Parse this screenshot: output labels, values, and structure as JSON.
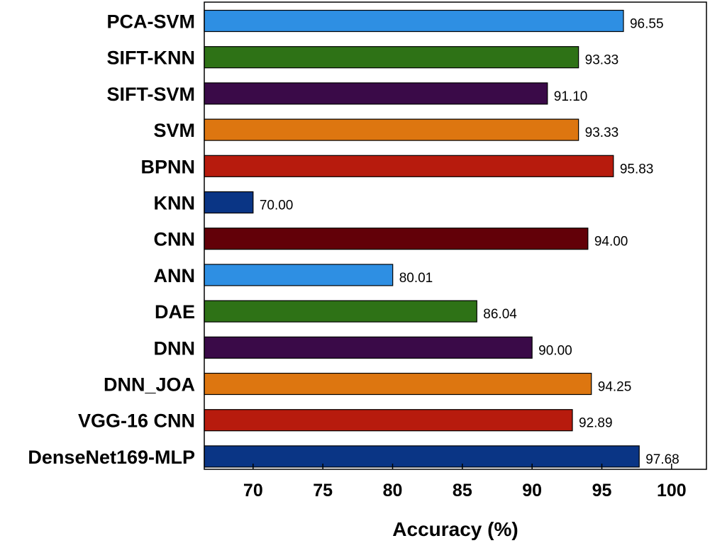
{
  "chart_data": {
    "type": "bar",
    "orientation": "horizontal",
    "categories": [
      "PCA-SVM",
      "SIFT-KNN",
      "SIFT-SVM",
      "SVM",
      "BPNN",
      "KNN",
      "CNN",
      "ANN",
      "DAE",
      "DNN",
      "DNN_JOA",
      "VGG-16 CNN",
      "DenseNet169-MLP"
    ],
    "values": [
      96.55,
      93.33,
      91.1,
      93.33,
      95.83,
      70.0,
      94.0,
      80.01,
      86.04,
      90.0,
      94.25,
      92.89,
      97.68
    ],
    "value_labels": [
      "96.55",
      "93.33",
      "91.10",
      "93.33",
      "95.83",
      "70.00",
      "94.00",
      "80.01",
      "86.04",
      "90.00",
      "94.25",
      "92.89",
      "97.68"
    ],
    "colors": [
      "#2E8FE3",
      "#2E7216",
      "#3A0A48",
      "#DD7610",
      "#B71B0D",
      "#0A3585",
      "#620008",
      "#2E8FE3",
      "#2E7216",
      "#3A0A48",
      "#DD7610",
      "#B71B0D",
      "#0A3585"
    ],
    "xlabel": "Accuracy (%)",
    "ylabel": "",
    "title": "",
    "xlim": [
      66.5,
      102.5
    ],
    "xticks": [
      70,
      75,
      80,
      85,
      90,
      95,
      100
    ],
    "grid": false,
    "legend": "none"
  }
}
